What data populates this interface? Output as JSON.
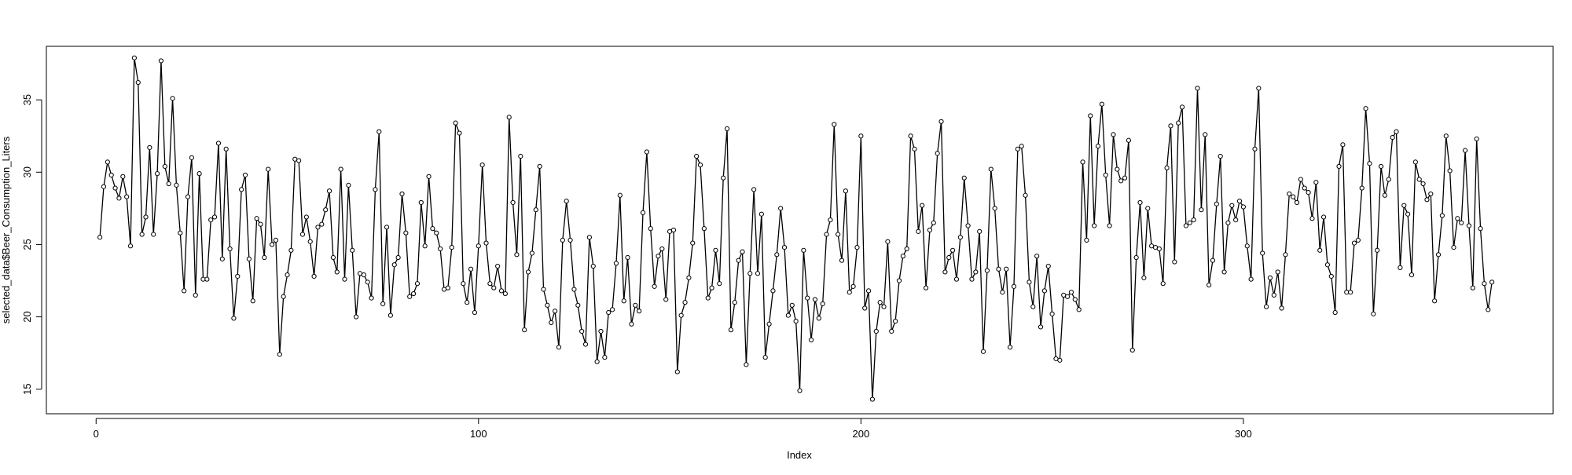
{
  "chart_data": {
    "type": "line",
    "title": "",
    "xlabel": "Index",
    "ylabel": "selected_data$Beer_Consumption_Liters",
    "xlim": [
      -13,
      381
    ],
    "ylim": [
      13.3,
      38.7
    ],
    "x_ticks": [
      0,
      100,
      200,
      300
    ],
    "y_ticks": [
      15,
      20,
      25,
      30,
      35
    ],
    "grid": false,
    "legend": "none",
    "markers": "open-circle",
    "line_color": "#000000",
    "x_start": 1,
    "values": [
      25.5,
      29.0,
      30.7,
      29.8,
      28.9,
      28.2,
      29.7,
      28.3,
      24.9,
      37.9,
      36.2,
      25.7,
      26.9,
      31.7,
      25.7,
      29.9,
      37.7,
      30.4,
      29.2,
      35.1,
      29.1,
      25.8,
      21.8,
      28.3,
      31.0,
      21.5,
      29.9,
      22.6,
      22.6,
      26.7,
      26.9,
      32.0,
      24.0,
      31.6,
      24.7,
      19.9,
      22.8,
      28.8,
      29.8,
      24.0,
      21.1,
      26.8,
      26.4,
      24.1,
      30.2,
      25.0,
      25.3,
      17.4,
      21.4,
      22.9,
      24.6,
      30.9,
      30.8,
      25.7,
      26.9,
      25.2,
      22.8,
      26.2,
      26.4,
      27.4,
      28.7,
      24.1,
      23.1,
      30.2,
      22.6,
      29.1,
      24.6,
      20.0,
      23.0,
      22.9,
      22.4,
      21.3,
      28.8,
      32.8,
      20.9,
      26.2,
      20.1,
      23.6,
      24.1,
      28.5,
      25.8,
      21.4,
      21.6,
      22.3,
      27.9,
      24.9,
      29.7,
      26.1,
      25.8,
      24.7,
      21.9,
      22.0,
      24.8,
      33.4,
      32.7,
      22.3,
      21.0,
      23.3,
      20.3,
      24.9,
      30.5,
      25.1,
      22.3,
      22.0,
      23.5,
      21.8,
      21.6,
      33.8,
      27.9,
      24.3,
      31.1,
      19.1,
      23.1,
      24.4,
      27.4,
      30.4,
      21.9,
      20.8,
      19.6,
      20.4,
      17.9,
      25.3,
      28.0,
      25.3,
      21.9,
      20.8,
      19.0,
      18.1,
      25.5,
      23.5,
      16.9,
      19.0,
      17.2,
      20.3,
      20.5,
      23.7,
      28.4,
      21.1,
      24.1,
      19.5,
      20.8,
      20.4,
      27.2,
      31.4,
      26.1,
      22.1,
      24.2,
      24.7,
      21.2,
      25.9,
      26.0,
      16.2,
      20.1,
      21.0,
      22.7,
      25.1,
      31.1,
      30.5,
      26.1,
      21.3,
      22.0,
      24.6,
      22.3,
      29.6,
      33.0,
      19.1,
      21.0,
      23.9,
      24.5,
      16.7,
      23.0,
      28.8,
      23.0,
      27.1,
      17.2,
      19.5,
      21.8,
      24.3,
      27.5,
      24.8,
      20.1,
      20.8,
      19.7,
      14.9,
      24.6,
      21.3,
      18.4,
      21.2,
      19.9,
      20.9,
      25.7,
      26.7,
      33.3,
      25.7,
      23.9,
      28.7,
      21.7,
      22.1,
      24.8,
      32.5,
      20.6,
      21.8,
      14.3,
      19.0,
      21.0,
      20.7,
      25.2,
      19.0,
      19.7,
      22.5,
      24.2,
      24.7,
      32.5,
      31.6,
      25.9,
      27.7,
      22.0,
      26.0,
      26.5,
      31.3,
      33.5,
      23.1,
      24.1,
      24.6,
      22.6,
      25.5,
      29.6,
      26.3,
      22.6,
      23.1,
      25.9,
      17.6,
      23.2,
      30.2,
      27.5,
      23.3,
      21.7,
      23.3,
      17.9,
      22.1,
      31.6,
      31.8,
      28.4,
      22.4,
      20.7,
      24.2,
      19.3,
      21.8,
      23.5,
      20.2,
      17.1,
      17.0,
      21.5,
      21.4,
      21.7,
      21.2,
      20.5,
      30.7,
      25.3,
      33.9,
      26.3,
      31.8,
      34.7,
      29.8,
      26.3,
      32.6,
      30.2,
      29.4,
      29.6,
      32.2,
      17.7,
      24.1,
      27.9,
      22.7,
      27.5,
      24.9,
      24.8,
      24.7,
      22.3,
      30.3,
      33.2,
      23.8,
      33.4,
      34.5,
      26.3,
      26.5,
      26.7,
      35.8,
      27.4,
      32.6,
      22.2,
      23.9,
      27.8,
      31.1,
      23.1,
      26.5,
      27.7,
      26.7,
      28.0,
      27.6,
      24.9,
      22.6,
      31.6,
      35.8,
      24.4,
      20.7,
      22.7,
      21.5,
      23.1,
      20.6,
      24.3,
      28.5,
      28.3,
      27.9,
      29.5,
      28.9,
      28.6,
      26.8,
      29.3,
      24.6,
      26.9,
      23.6,
      22.8,
      20.3,
      30.4,
      31.9,
      21.7,
      21.7,
      25.1,
      25.3,
      28.9,
      34.4,
      30.6,
      20.2,
      24.6,
      30.4,
      28.4,
      29.5,
      32.4,
      32.8,
      23.4,
      27.7,
      27.1,
      22.9,
      30.7,
      29.5,
      29.2,
      28.1,
      28.5,
      21.1,
      24.3,
      27.0,
      32.5,
      30.1,
      24.8,
      26.8,
      26.5,
      31.5,
      26.3,
      22.0,
      32.3,
      26.1,
      22.3,
      20.5,
      22.4
    ]
  }
}
